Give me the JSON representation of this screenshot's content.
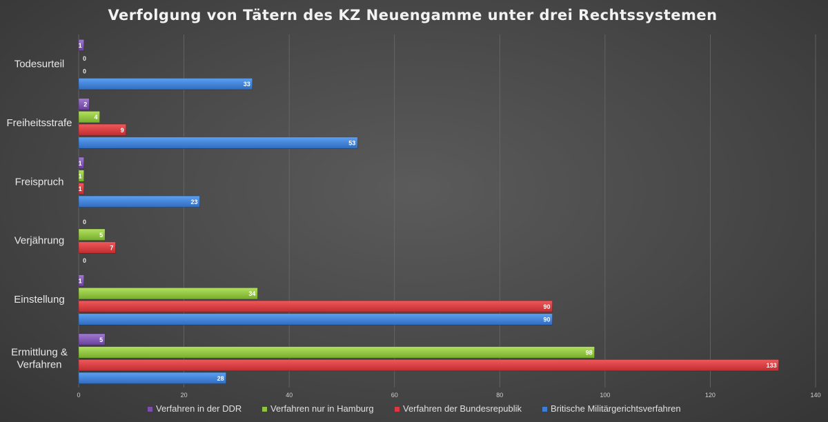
{
  "chart_data": {
    "type": "bar",
    "orientation": "horizontal",
    "title": "Verfolgung von Tätern des KZ Neuengamme unter drei Rechtssystemen",
    "categories": [
      [
        "Todesurteil"
      ],
      [
        "Freiheitsstrafe"
      ],
      [
        "Freispruch"
      ],
      [
        "Verjährung"
      ],
      [
        "Einstellung"
      ],
      [
        "Ermittlung &",
        "Verfahren"
      ]
    ],
    "series": [
      {
        "name": "Verfahren in der DDR",
        "color": "#7b4fae",
        "values": [
          1,
          2,
          1,
          0,
          1,
          5
        ]
      },
      {
        "name": "Verfahren nur in Hamburg",
        "color": "#8fc43f",
        "values": [
          0,
          4,
          1,
          5,
          34,
          98
        ]
      },
      {
        "name": "Verfahren der Bundesrepublik",
        "color": "#d93a3d",
        "values": [
          0,
          9,
          1,
          7,
          90,
          133
        ]
      },
      {
        "name": "Britische Militärgerichtsverfahren",
        "color": "#3b7fd4",
        "values": [
          33,
          53,
          23,
          0,
          90,
          28
        ]
      }
    ],
    "xlim": [
      0,
      140
    ],
    "xticks": [
      0,
      20,
      40,
      60,
      80,
      100,
      120,
      140
    ],
    "grid": true,
    "legend": "bottom"
  }
}
